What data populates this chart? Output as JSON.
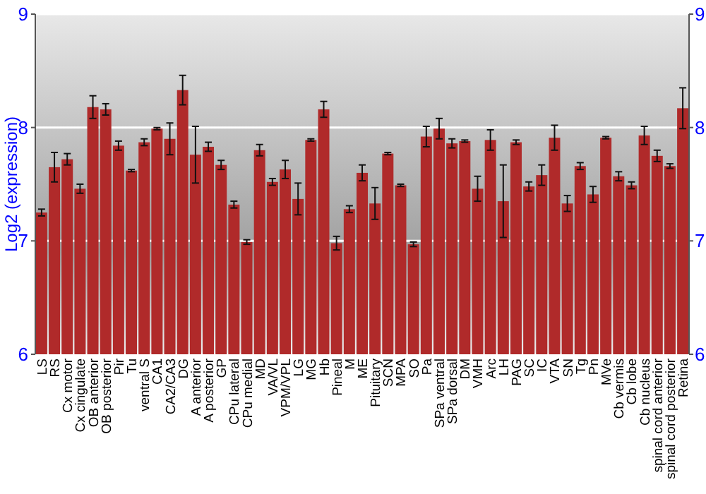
{
  "chart_data": {
    "type": "bar",
    "ylabel": "Log2 (expression)",
    "categories": [
      "LS",
      "RS",
      "Cx motor",
      "Cx cingulate",
      "OB anterior",
      "OB posterior",
      "Pir",
      "Tu",
      "ventral S",
      "CA1",
      "CA2/CA3",
      "DG",
      "A anterior",
      "A posterior",
      "GP",
      "CPu lateral",
      "CPu medial",
      "MD",
      "VA/VL",
      "VPM/VPL",
      "LG",
      "MG",
      "Hb",
      "Pineal",
      "M",
      "ME",
      "Pituitary",
      "SCN",
      "MPA",
      "SO",
      "Pa",
      "SPa ventral",
      "SPa dorsal",
      "DM",
      "VMH",
      "Arc",
      "LH",
      "PAG",
      "SC",
      "IC",
      "VTA",
      "SN",
      "Tg",
      "Pn",
      "MVe",
      "Cb vermis",
      "Cb lobe",
      "Cb nucleus",
      "spinal cord anterior",
      "spinal cord posterior",
      "Retina"
    ],
    "values": [
      7.25,
      7.65,
      7.72,
      7.46,
      8.18,
      8.16,
      7.84,
      7.62,
      7.87,
      7.99,
      7.9,
      8.33,
      7.76,
      7.83,
      7.67,
      7.32,
      6.99,
      7.8,
      7.52,
      7.63,
      7.37,
      7.89,
      8.16,
      6.98,
      7.28,
      7.6,
      7.33,
      7.77,
      7.49,
      6.97,
      7.92,
      7.99,
      7.86,
      7.88,
      7.46,
      7.89,
      7.35,
      7.87,
      7.48,
      7.58,
      7.91,
      7.33,
      7.66,
      7.41,
      7.91,
      7.57,
      7.49,
      7.93,
      7.75,
      7.66,
      8.17
    ],
    "errors": [
      0.03,
      0.13,
      0.05,
      0.04,
      0.1,
      0.05,
      0.04,
      0.01,
      0.03,
      0.01,
      0.14,
      0.13,
      0.25,
      0.04,
      0.04,
      0.03,
      0.02,
      0.05,
      0.03,
      0.08,
      0.14,
      0.01,
      0.07,
      0.06,
      0.03,
      0.07,
      0.14,
      0.01,
      0.01,
      0.02,
      0.09,
      0.09,
      0.04,
      0.01,
      0.11,
      0.09,
      0.32,
      0.02,
      0.04,
      0.09,
      0.11,
      0.07,
      0.03,
      0.07,
      0.01,
      0.04,
      0.03,
      0.08,
      0.05,
      0.02,
      0.18
    ],
    "color": "#b02a2a",
    "ylim": [
      6,
      9
    ],
    "yticks": [
      6,
      7,
      8,
      9
    ],
    "y2lim": [
      6,
      9
    ],
    "y2ticks": [
      6,
      7,
      8,
      9
    ],
    "grid": "y"
  }
}
